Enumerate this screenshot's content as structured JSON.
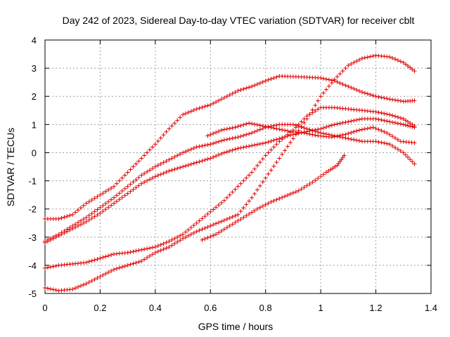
{
  "chart_data": {
    "type": "scatter",
    "title": "Day 242 of 2023, Sidereal Day-to-day VTEC variation (SDTVAR) for receiver cblt",
    "xlabel": "GPS time / hours",
    "ylabel": "SDTVAR / TECUs",
    "xlim": [
      0,
      1.4
    ],
    "ylim": [
      -5,
      4
    ],
    "x_ticks": [
      0,
      0.2,
      0.4,
      0.6,
      0.8,
      1,
      1.2,
      1.4
    ],
    "x_tick_labels": [
      "0",
      "0.2",
      "0.4",
      "0.6",
      "0.8",
      "1",
      "1.2",
      "1.4"
    ],
    "y_ticks": [
      -5,
      -4,
      -3,
      -2,
      -1,
      0,
      1,
      2,
      3,
      4
    ],
    "y_tick_labels": [
      "-5",
      "-4",
      "-3",
      "-2",
      "-1",
      "0",
      "1",
      "2",
      "3",
      "4"
    ],
    "grid": true,
    "marker": "+",
    "color": "#e00000",
    "series": [
      {
        "name": "s1",
        "x": [
          0,
          0.05,
          0.1,
          0.15,
          0.2,
          0.25,
          0.3,
          0.35,
          0.4,
          0.45,
          0.5,
          0.55,
          0.6,
          0.65,
          0.7,
          0.75,
          0.8,
          0.85,
          0.9,
          0.95,
          1.0,
          1.05,
          1.1,
          1.15,
          1.2,
          1.25,
          1.3,
          1.34
        ],
        "y": [
          -2.35,
          -2.35,
          -2.2,
          -1.8,
          -1.5,
          -1.2,
          -0.7,
          -0.2,
          0.3,
          0.85,
          1.35,
          1.55,
          1.7,
          1.95,
          2.2,
          2.35,
          2.55,
          2.72,
          2.7,
          2.68,
          2.65,
          2.55,
          2.35,
          2.15,
          2.0,
          1.9,
          1.82,
          1.85
        ]
      },
      {
        "name": "s2",
        "x": [
          0,
          0.05,
          0.1,
          0.15,
          0.2,
          0.25,
          0.3,
          0.35,
          0.4,
          0.45,
          0.5,
          0.55,
          0.6,
          0.65,
          0.7,
          0.75,
          0.8,
          0.85,
          0.9,
          0.95,
          1.0,
          1.05,
          1.1,
          1.15,
          1.2,
          1.25,
          1.3,
          1.34
        ],
        "y": [
          -3.2,
          -2.95,
          -2.7,
          -2.45,
          -2.15,
          -1.8,
          -1.45,
          -1.1,
          -0.85,
          -0.65,
          -0.5,
          -0.35,
          -0.2,
          0.0,
          0.15,
          0.25,
          0.35,
          0.5,
          0.65,
          0.75,
          0.85,
          1.0,
          1.1,
          1.2,
          1.2,
          1.1,
          1.0,
          0.9
        ]
      },
      {
        "name": "s3",
        "x": [
          0,
          0.05,
          0.1,
          0.15,
          0.2,
          0.25,
          0.3,
          0.35,
          0.4,
          0.45,
          0.5,
          0.55,
          0.6,
          0.65,
          0.7,
          0.75,
          0.8,
          0.85,
          0.9,
          0.95,
          1.0,
          1.05,
          1.1,
          1.15,
          1.2,
          1.25,
          1.3,
          1.34
        ],
        "y": [
          -3.15,
          -2.9,
          -2.6,
          -2.3,
          -1.95,
          -1.6,
          -1.2,
          -0.8,
          -0.5,
          -0.25,
          0.0,
          0.2,
          0.3,
          0.45,
          0.55,
          0.7,
          0.9,
          1.0,
          1.0,
          0.85,
          0.7,
          0.6,
          0.5,
          0.4,
          0.4,
          0.3,
          0.0,
          -0.4
        ]
      },
      {
        "name": "s4",
        "x": [
          0,
          0.05,
          0.1,
          0.15,
          0.2,
          0.25,
          0.3,
          0.35,
          0.4,
          0.45,
          0.5,
          0.55,
          0.6,
          0.65,
          0.7,
          0.75,
          0.8,
          0.85,
          0.9,
          0.95,
          1.0,
          1.05,
          1.1,
          1.15,
          1.2,
          1.25,
          1.3,
          1.34
        ],
        "y": [
          -4.1,
          -4.0,
          -3.95,
          -3.9,
          -3.75,
          -3.6,
          -3.55,
          -3.45,
          -3.35,
          -3.15,
          -2.9,
          -2.5,
          -2.1,
          -1.7,
          -1.2,
          -0.7,
          -0.1,
          0.4,
          0.8,
          1.3,
          1.6,
          1.6,
          1.55,
          1.5,
          1.45,
          1.35,
          1.2,
          0.95
        ]
      },
      {
        "name": "s5",
        "x": [
          0,
          0.05,
          0.1,
          0.15,
          0.2,
          0.25,
          0.3,
          0.35,
          0.4,
          0.45,
          0.5,
          0.55,
          0.6,
          0.65,
          0.7,
          0.75,
          0.8,
          0.85,
          0.9,
          0.95,
          1.0,
          1.05,
          1.1,
          1.15,
          1.2,
          1.25,
          1.3,
          1.34
        ],
        "y": [
          -4.8,
          -4.9,
          -4.85,
          -4.65,
          -4.4,
          -4.15,
          -4.0,
          -3.85,
          -3.55,
          -3.35,
          -3.05,
          -2.8,
          -2.6,
          -2.4,
          -2.2,
          -1.6,
          -0.9,
          -0.2,
          0.5,
          1.2,
          2.0,
          2.6,
          3.1,
          3.35,
          3.45,
          3.4,
          3.2,
          2.9
        ]
      },
      {
        "name": "s6",
        "x": [
          0.57,
          0.62,
          0.67,
          0.72,
          0.77,
          0.82,
          0.87,
          0.92,
          0.97,
          1.02,
          1.06,
          1.085
        ],
        "y": [
          -3.1,
          -2.9,
          -2.6,
          -2.3,
          -2.0,
          -1.75,
          -1.55,
          -1.35,
          -1.05,
          -0.7,
          -0.45,
          -0.1
        ]
      },
      {
        "name": "s7",
        "x": [
          0.59,
          0.64,
          0.69,
          0.74,
          0.79,
          0.84,
          0.89,
          0.94,
          0.99,
          1.04,
          1.09,
          1.14,
          1.19,
          1.24,
          1.29,
          1.34
        ],
        "y": [
          0.6,
          0.8,
          0.9,
          1.05,
          0.95,
          0.85,
          0.75,
          0.7,
          0.6,
          0.55,
          0.65,
          0.8,
          0.9,
          0.7,
          0.4,
          0.35
        ]
      }
    ]
  }
}
